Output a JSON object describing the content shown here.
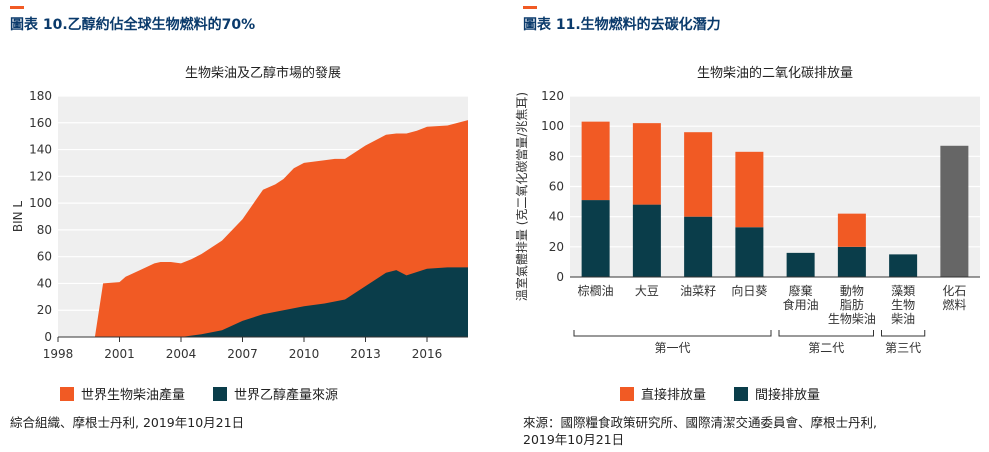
{
  "colors": {
    "accent": "#f15a24",
    "title_blue": "#0a3a6b",
    "biodiesel": "#f15a24",
    "ethanol": "#0a3d4a",
    "fossil": "#666666",
    "plot_bg": "#efefef"
  },
  "left": {
    "figure_title": "圖表 10.乙醇約佔全球生物燃料的70%",
    "source": "綜合組織、摩根士丹利, 2019年10月21日",
    "chart_data": {
      "type": "area",
      "title": "生物柴油及乙醇市場的發展",
      "ylabel": "BIN L",
      "xlabel": "",
      "ylim": [
        0,
        180
      ],
      "xlim": [
        1998,
        2018
      ],
      "yticks": [
        0,
        20,
        40,
        60,
        80,
        100,
        120,
        140,
        160,
        180
      ],
      "xticks": [
        1998,
        2001,
        2004,
        2007,
        2010,
        2013,
        2016
      ],
      "grid": true,
      "legend_position": "bottom",
      "series": [
        {
          "name": "世界生物柴油產量",
          "x": [
            1998,
            1999,
            1999.8,
            2000.2,
            2001,
            2001.3,
            2002,
            2002.7,
            2003,
            2003.5,
            2004,
            2004.5,
            2005,
            2006,
            2007,
            2008,
            2008.6,
            2009,
            2009.5,
            2010,
            2011,
            2011.5,
            2012,
            2013,
            2014,
            2014.5,
            2015,
            2015.5,
            2016,
            2017,
            2018
          ],
          "values": [
            0,
            0,
            0,
            40,
            41,
            45,
            50,
            55,
            56,
            56,
            55,
            58,
            62,
            72,
            88,
            110,
            114,
            118,
            126,
            130,
            132,
            133,
            133,
            143,
            151,
            152,
            152,
            154,
            157,
            158,
            162
          ]
        },
        {
          "name": "世界乙醇產量來源",
          "x": [
            1998,
            2004,
            2005,
            2006,
            2007,
            2008,
            2009,
            2010,
            2011,
            2012,
            2013,
            2014,
            2014.5,
            2015,
            2016,
            2017,
            2018
          ],
          "values": [
            0,
            0,
            2,
            5,
            12,
            17,
            20,
            23,
            25,
            28,
            38,
            48,
            50,
            46,
            51,
            52,
            52
          ]
        }
      ]
    }
  },
  "right": {
    "figure_title": "圖表 11.生物燃料的去碳化潛力",
    "source_lines": [
      "來源：國際糧食政策研究所、國際清潔交通委員會、摩根士丹利,",
      "2019年10月21日"
    ],
    "chart_data": {
      "type": "bar",
      "title": "生物柴油的二氧化碳排放量",
      "ylabel": "溫室氣體排量 (克二氧化碳當量/兆焦耳)",
      "xlabel": "",
      "ylim": [
        0,
        120
      ],
      "yticks": [
        0,
        20,
        40,
        60,
        80,
        100,
        120
      ],
      "grid": true,
      "legend_position": "bottom",
      "categories": [
        [
          "棕櫚油"
        ],
        [
          "大豆"
        ],
        [
          "油菜籽"
        ],
        [
          "向日葵"
        ],
        [
          "廢棄",
          "食用油"
        ],
        [
          "動物",
          "脂肪",
          "生物柴油"
        ],
        [
          "藻類",
          "生物",
          "柴油"
        ],
        [
          "化石",
          "燃料"
        ]
      ],
      "series": [
        {
          "name": "間接排放量",
          "values": [
            51,
            48,
            40,
            33,
            16,
            20,
            15,
            0
          ]
        },
        {
          "name": "直接排放量",
          "values": [
            52,
            54,
            56,
            50,
            0,
            22,
            0,
            0
          ]
        },
        {
          "name": "",
          "values": [
            0,
            0,
            0,
            0,
            0,
            0,
            0,
            87
          ]
        }
      ],
      "groups": [
        {
          "label": "第一代",
          "from": 0,
          "to": 3
        },
        {
          "label": "第二代",
          "from": 4,
          "to": 5
        },
        {
          "label": "第三代",
          "from": 6,
          "to": 6
        }
      ]
    }
  }
}
